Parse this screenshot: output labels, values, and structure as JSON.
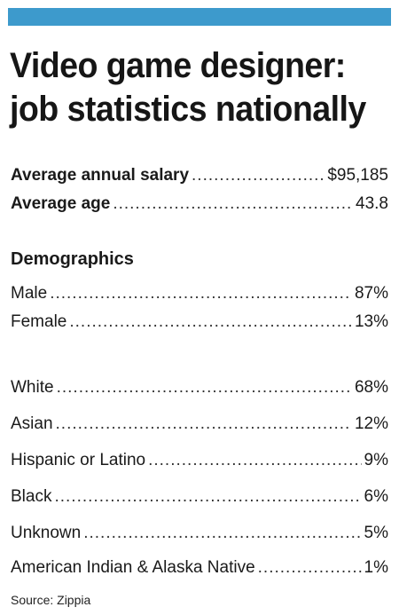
{
  "title_lines": [
    "Video game designer:",
    "job statistics nationally"
  ],
  "summary": [
    {
      "label": "Average annual salary",
      "value": "$95,185"
    },
    {
      "label": "Average age",
      "value": "43.8"
    }
  ],
  "demographics_heading": "Demographics",
  "gender": [
    {
      "label": "Male",
      "value": "87%"
    },
    {
      "label": "Female",
      "value": "13%"
    }
  ],
  "ethnicity": [
    {
      "label": "White",
      "value": "68%"
    },
    {
      "label": "Asian",
      "value": "12%"
    },
    {
      "label": "Hispanic or Latino",
      "value": "9%"
    },
    {
      "label": "Black",
      "value": "6%"
    },
    {
      "label": "Unknown",
      "value": "5%"
    },
    {
      "label": "American Indian & Alaska Native",
      "value": "1%"
    }
  ],
  "source": "Source: Zippia",
  "colors": {
    "header_bar": "#3d9acc",
    "text": "#1a1a1a"
  }
}
